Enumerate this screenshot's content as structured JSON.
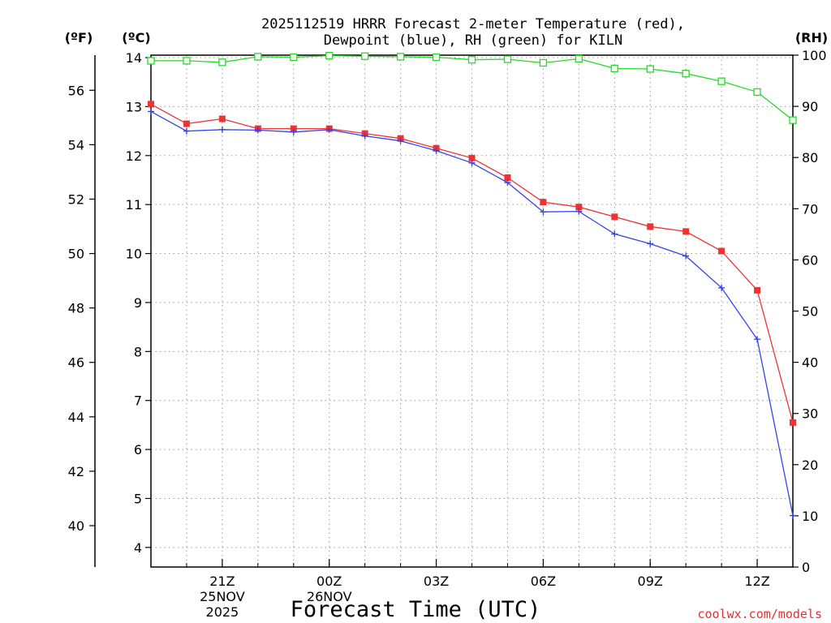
{
  "chart_data": {
    "type": "line",
    "title_line1": "2025112519 HRRR Forecast 2-meter Temperature (red),",
    "title_line2": "Dewpoint (blue), RH (green) for KILN",
    "xlabel": "Forecast Time (UTC)",
    "credit": "coolwx.com/models",
    "units": {
      "fahrenheit": "(ºF)",
      "celsius": "(ºC)",
      "rh": "(RH)"
    },
    "x": [
      19,
      20,
      21,
      22,
      23,
      24,
      25,
      26,
      27,
      28,
      29,
      30,
      31,
      32,
      33,
      34,
      35,
      36,
      37
    ],
    "xlim": [
      19,
      37
    ],
    "x_ticks": [
      {
        "x": 21,
        "label": "21Z",
        "sub1": "25NOV",
        "sub2": "2025"
      },
      {
        "x": 24,
        "label": "00Z",
        "sub1": "26NOV",
        "sub2": ""
      },
      {
        "x": 27,
        "label": "03Z",
        "sub1": "",
        "sub2": ""
      },
      {
        "x": 30,
        "label": "06Z",
        "sub1": "",
        "sub2": ""
      },
      {
        "x": 33,
        "label": "09Z",
        "sub1": "",
        "sub2": ""
      },
      {
        "x": 36,
        "label": "12Z",
        "sub1": "",
        "sub2": ""
      }
    ],
    "ylim_c": [
      3.6,
      14.05
    ],
    "y_ticks_c": [
      "4",
      "5",
      "6",
      "7",
      "8",
      "9",
      "10",
      "11",
      "12",
      "13",
      "14"
    ],
    "y_ticks_f": [
      "40",
      "42",
      "44",
      "46",
      "48",
      "50",
      "52",
      "54",
      "56"
    ],
    "ylim_rh": [
      0,
      100
    ],
    "y_ticks_rh": [
      "0",
      "10",
      "20",
      "30",
      "40",
      "50",
      "60",
      "70",
      "80",
      "90",
      "100"
    ],
    "series": [
      {
        "name": "2-meter Temperature",
        "color": "#ee3333",
        "marker": "square-filled",
        "axis": "celsius",
        "values": [
          13.05,
          12.65,
          12.75,
          12.55,
          12.55,
          12.55,
          12.45,
          12.35,
          12.15,
          11.95,
          11.55,
          11.05,
          10.95,
          10.75,
          10.55,
          10.45,
          10.05,
          9.25,
          6.55
        ]
      },
      {
        "name": "Dewpoint",
        "color": "#3344ee",
        "marker": "plus",
        "axis": "celsius",
        "values": [
          12.9,
          12.5,
          12.53,
          12.52,
          12.48,
          12.53,
          12.4,
          12.3,
          12.1,
          11.85,
          11.45,
          10.85,
          10.86,
          10.4,
          10.2,
          9.95,
          9.3,
          8.25,
          4.65
        ]
      },
      {
        "name": "RH",
        "color": "#22dd22",
        "marker": "square-open",
        "axis": "rh",
        "values": [
          98.9,
          98.9,
          98.6,
          99.7,
          99.6,
          99.9,
          99.8,
          99.7,
          99.6,
          99.1,
          99.2,
          98.5,
          99.3,
          97.4,
          97.3,
          96.4,
          94.9,
          92.8,
          87.3
        ]
      }
    ]
  }
}
